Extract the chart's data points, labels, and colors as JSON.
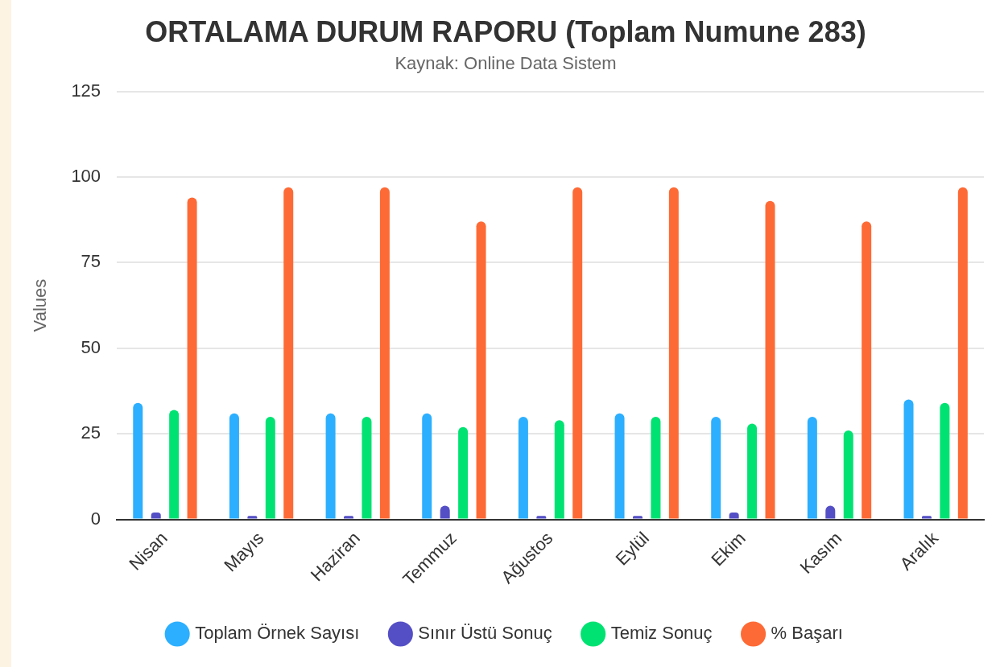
{
  "chart_data": {
    "type": "bar",
    "title": "ORTALAMA DURUM RAPORU (Toplam Numune 283)",
    "subtitle": "Kaynak: Online Data Sistem",
    "ylabel": "Values",
    "categories": [
      "Nisan",
      "Mayıs",
      "Haziran",
      "Temmuz",
      "Ağustos",
      "Eylül",
      "Ekim",
      "Kasım",
      "Aralık"
    ],
    "series": [
      {
        "name": "Toplam Örnek Sayısı",
        "color": "#2caffe",
        "values": [
          34,
          31,
          31,
          31,
          30,
          31,
          30,
          30,
          35
        ]
      },
      {
        "name": "Sınır Üstü Sonuç",
        "color": "#544fc5",
        "values": [
          2,
          1,
          1,
          4,
          1,
          1,
          2,
          4,
          1
        ]
      },
      {
        "name": "Temiz Sonuç",
        "color": "#00e272",
        "values": [
          32,
          30,
          30,
          27,
          29,
          30,
          28,
          26,
          34
        ]
      },
      {
        "name": "% Başarı",
        "color": "#fe6a35",
        "values": [
          94,
          97,
          97,
          87,
          97,
          97,
          93,
          87,
          97
        ]
      }
    ],
    "ylim": [
      0,
      125
    ],
    "yticks": [
      0,
      25,
      50,
      75,
      100,
      125
    ],
    "grid": "y",
    "legend": "bottom"
  }
}
